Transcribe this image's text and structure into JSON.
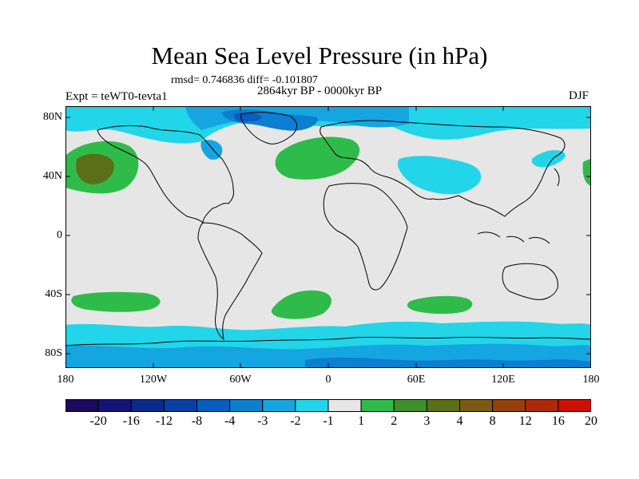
{
  "title": "Mean Sea Level Pressure (in hPa)",
  "stats_line": "rmsd= 0.746836 diff= -0.101807",
  "period": "2864kyr BP - 0000kyr BP",
  "experiment": "Expt = teWT0-tevta1",
  "season": "DJF",
  "lat_ticks": [
    "80N",
    "40N",
    "0",
    "40S",
    "80S"
  ],
  "lon_ticks": [
    "180",
    "120W",
    "60W",
    "0",
    "60E",
    "120E",
    "180"
  ],
  "colorbar": {
    "labels": [
      "-20",
      "-16",
      "-12",
      "-8",
      "-4",
      "-3",
      "-2",
      "-1",
      "1",
      "2",
      "3",
      "4",
      "8",
      "12",
      "16",
      "20"
    ],
    "colors": [
      "#1c0a5e",
      "#14147a",
      "#0c2a8e",
      "#0a3fa8",
      "#0a5cc0",
      "#0c7fd0",
      "#15a5e0",
      "#22d5e8",
      "#e6e6e6",
      "#2fbb4a",
      "#3f8f2a",
      "#5a7018",
      "#7a5a14",
      "#96400e",
      "#b0280a",
      "#d01005"
    ]
  },
  "colors": {
    "neutral": "#e6e6e6",
    "cyan": "#22d5e8",
    "light_blue": "#15a5e0",
    "mid_blue": "#0c7fd0",
    "green": "#2fbb4a",
    "dark_green": "#5a7018"
  }
}
